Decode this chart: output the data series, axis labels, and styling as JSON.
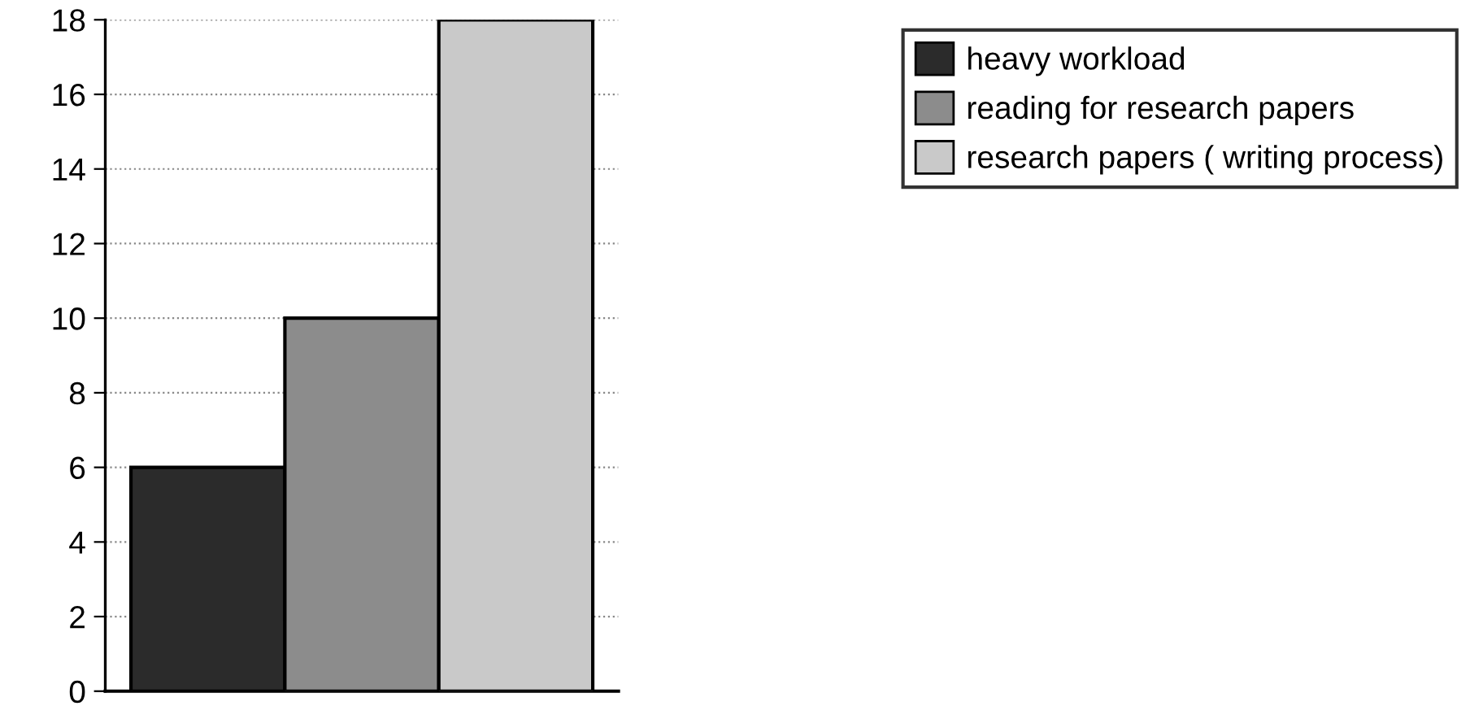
{
  "chart_data": {
    "type": "bar",
    "categories": [
      null
    ],
    "series": [
      {
        "name": "heavy workload",
        "color": "#2b2b2b",
        "values": [
          6
        ]
      },
      {
        "name": "reading for research papers",
        "color": "#8c8c8c",
        "values": [
          10
        ]
      },
      {
        "name": "research papers ( writing process)",
        "color": "#c9c9c9",
        "values": [
          18
        ]
      }
    ],
    "ylim": [
      0,
      18
    ],
    "yticks": [
      0,
      2,
      4,
      6,
      8,
      10,
      12,
      14,
      16,
      18
    ],
    "grid": "y",
    "legend": "top right"
  }
}
